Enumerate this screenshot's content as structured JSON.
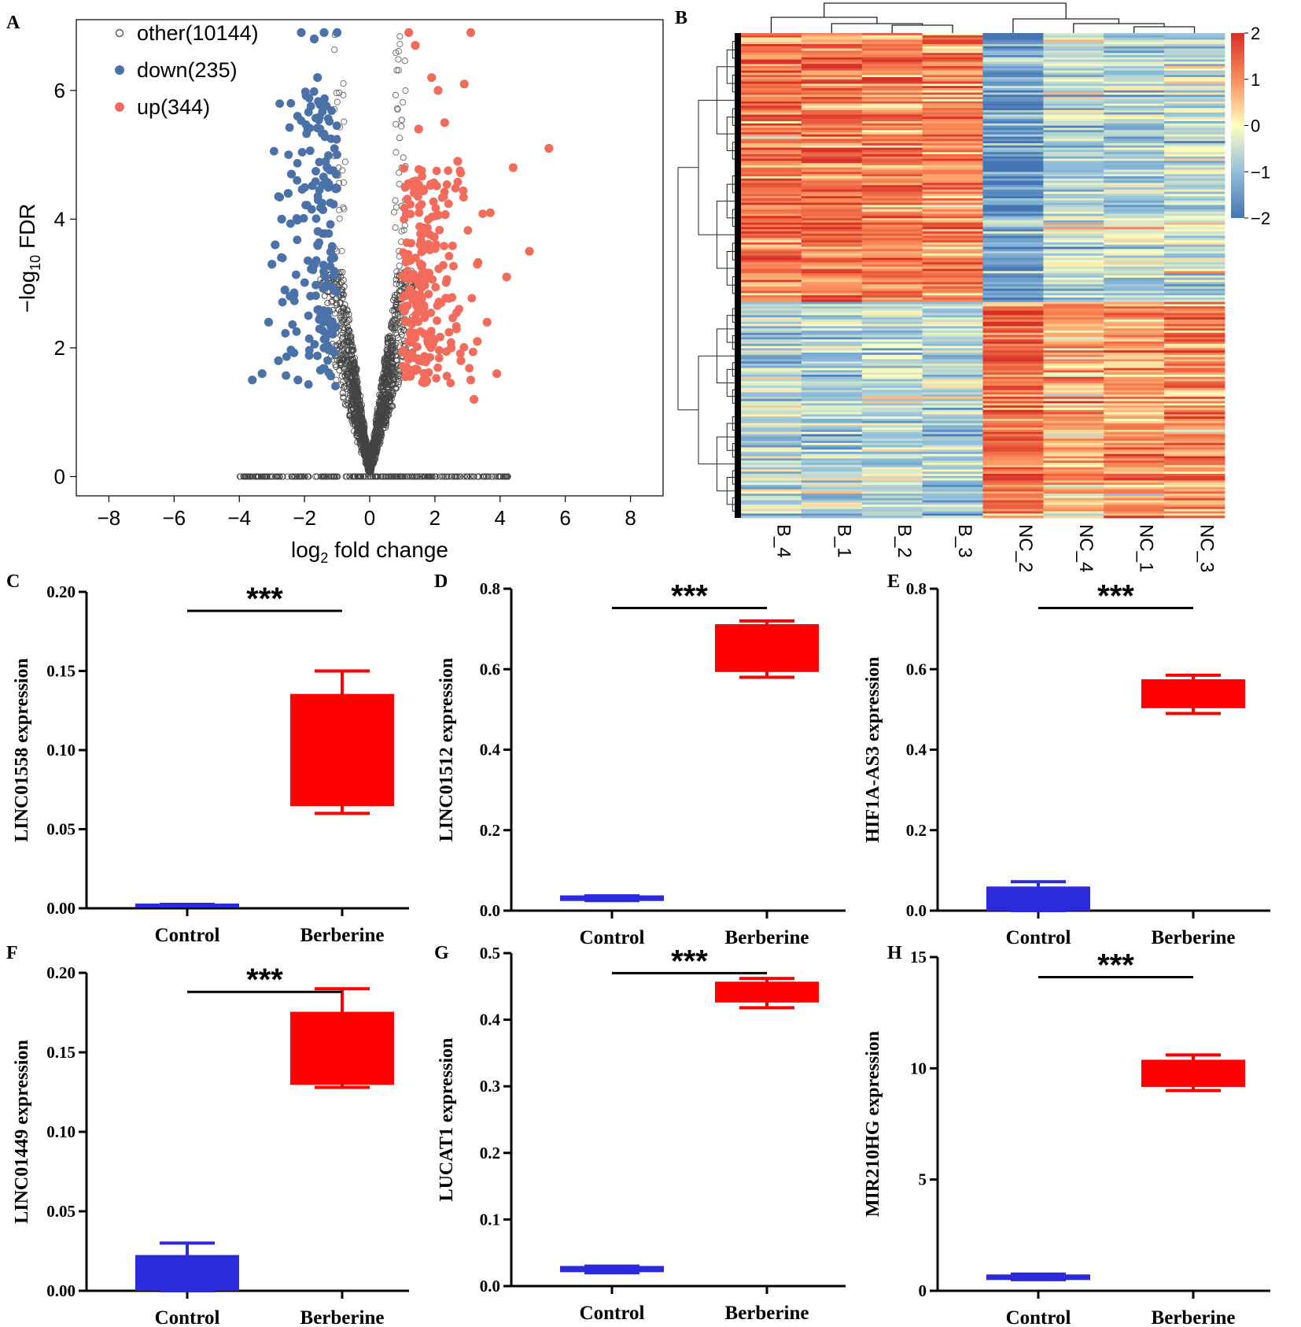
{
  "figure": {
    "panel_letters": [
      "A",
      "B",
      "C",
      "D",
      "E",
      "F",
      "G",
      "H"
    ]
  },
  "colors": {
    "up": "#f26b5b",
    "down": "#4a72a8",
    "other": "#555555",
    "box_berberine": "#ff0000",
    "box_control": "#2b2bdc",
    "heat_low": "#4575b4",
    "heat_mid": "#ffffbf",
    "heat_high": "#d73027"
  },
  "chart_data": [
    {
      "panel": "A",
      "type": "scatter",
      "title": "",
      "xlabel": "log2 fold change",
      "xlabel_main": "log",
      "xlabel_sub": "2",
      "xlabel_rest": " fold change",
      "ylabel": "-log10 FDR",
      "ylabel_main": "−log",
      "ylabel_sub": "10",
      "ylabel_rest": " FDR",
      "xlim": [
        -9,
        9
      ],
      "ylim": [
        -0.3,
        7.1
      ],
      "xticks": [
        -8,
        -6,
        -4,
        -2,
        0,
        2,
        4,
        6,
        8
      ],
      "xtick_labels": [
        "−8",
        "−6",
        "−4",
        "−2",
        "0",
        "2",
        "4",
        "6",
        "8"
      ],
      "yticks": [
        0,
        2,
        4,
        6
      ],
      "ytick_labels": [
        "0",
        "2",
        "4",
        "6"
      ],
      "legend": {
        "placement": "top-left",
        "entries": [
          {
            "key": "other",
            "label": "other(10144)",
            "count": 10144
          },
          {
            "key": "down",
            "label": "down(235)",
            "count": 235
          },
          {
            "key": "up",
            "label": "up(344)",
            "count": 344
          }
        ]
      },
      "series": [
        {
          "name": "up",
          "points": [
            [
              5.5,
              5.1
            ],
            [
              4.4,
              4.8
            ],
            [
              3.7,
              4.1
            ],
            [
              4.9,
              3.5
            ],
            [
              4.2,
              3.1
            ],
            [
              3.1,
              6.9
            ],
            [
              2.9,
              6.1
            ],
            [
              2.7,
              4.9
            ],
            [
              3.3,
              3.3
            ],
            [
              3.6,
              2.4
            ],
            [
              2.3,
              5.5
            ],
            [
              2.1,
              6.0
            ],
            [
              1.9,
              6.2
            ],
            [
              1.4,
              6.7
            ],
            [
              1.2,
              6.9
            ],
            [
              1.5,
              5.4
            ],
            [
              2.5,
              2.0
            ],
            [
              3.1,
              1.5
            ],
            [
              2.8,
              1.8
            ],
            [
              3.3,
              2.1
            ],
            [
              3.2,
              1.2
            ],
            [
              3.9,
              1.6
            ]
          ]
        },
        {
          "name": "down",
          "points": [
            [
              -2.1,
              6.9
            ],
            [
              -1.7,
              6.8
            ],
            [
              -1.4,
              6.9
            ],
            [
              -1.0,
              6.9
            ],
            [
              -1.6,
              6.2
            ],
            [
              -1.9,
              5.4
            ],
            [
              -2.4,
              4.7
            ],
            [
              -2.5,
              4.4
            ],
            [
              -2.7,
              4.0
            ],
            [
              -2.9,
              3.6
            ],
            [
              -3.0,
              3.3
            ],
            [
              -2.6,
              2.9
            ],
            [
              -3.1,
              2.4
            ],
            [
              -3.3,
              1.6
            ],
            [
              -3.6,
              1.5
            ],
            [
              -2.8,
              1.8
            ],
            [
              -2.2,
              1.5
            ],
            [
              -1.4,
              2.0
            ],
            [
              -1.1,
              3.4
            ],
            [
              -1.3,
              4.8
            ]
          ]
        }
      ],
      "other_summary": "10144 non-significant points clustered near x = 0 and along y = 0 between x = -4 and 4.3"
    },
    {
      "panel": "B",
      "type": "heatmap",
      "columns": [
        "B_4",
        "B_1",
        "B_2",
        "B_3",
        "NC_2",
        "NC_4",
        "NC_1",
        "NC_3"
      ],
      "color_scale": {
        "min": -2,
        "max": 2,
        "ticks": [
          2,
          1,
          0,
          -1,
          -2
        ],
        "tick_labels": [
          "2",
          "1",
          "0",
          "−1",
          "−2"
        ]
      },
      "row_blocks": [
        {
          "rows": "top ~55% of genes",
          "values": [
            1.2,
            1.3,
            1.2,
            1.1,
            -1.5,
            -0.6,
            -0.6,
            -0.5
          ]
        },
        {
          "rows": "bottom ~45% of genes",
          "values": [
            -0.6,
            -0.7,
            -0.6,
            -0.7,
            1.4,
            0.7,
            0.9,
            1.0
          ]
        }
      ]
    },
    {
      "panel": "C",
      "type": "box",
      "ylabel": "LINC01558 expression",
      "ylim": [
        0,
        0.2
      ],
      "yticks": [
        "0.00",
        "0.05",
        "0.10",
        "0.15",
        "0.20"
      ],
      "ytick_values": [
        0,
        0.05,
        0.1,
        0.15,
        0.2
      ],
      "categories": [
        "Control",
        "Berberine"
      ],
      "significance": "***",
      "boxes": [
        {
          "group": "Control",
          "min": 0.0015,
          "q1": 0.0015,
          "median": 0.002,
          "q3": 0.0025,
          "max": 0.0025
        },
        {
          "group": "Berberine",
          "min": 0.06,
          "q1": 0.065,
          "median": 0.095,
          "q3": 0.135,
          "max": 0.15
        }
      ]
    },
    {
      "panel": "D",
      "type": "box",
      "ylabel": "LINC01512 expression",
      "ylim": [
        0,
        0.8
      ],
      "yticks": [
        "0.0",
        "0.2",
        "0.4",
        "0.6",
        "0.8"
      ],
      "ytick_values": [
        0,
        0.2,
        0.4,
        0.6,
        0.8
      ],
      "categories": [
        "Control",
        "Berberine"
      ],
      "significance": "***",
      "boxes": [
        {
          "group": "Control",
          "min": 0.025,
          "q1": 0.026,
          "median": 0.03,
          "q3": 0.036,
          "max": 0.037
        },
        {
          "group": "Berberine",
          "min": 0.58,
          "q1": 0.595,
          "median": 0.65,
          "q3": 0.71,
          "max": 0.72
        }
      ]
    },
    {
      "panel": "E",
      "type": "box",
      "ylabel": "HIF1A-AS3 expression",
      "ylim": [
        0,
        0.8
      ],
      "yticks": [
        "0.0",
        "0.2",
        "0.4",
        "0.6",
        "0.8"
      ],
      "ytick_values": [
        0,
        0.2,
        0.4,
        0.6,
        0.8
      ],
      "categories": [
        "Control",
        "Berberine"
      ],
      "significance": "***",
      "boxes": [
        {
          "group": "Control",
          "min": 0.0,
          "q1": 0.001,
          "median": 0.04,
          "q3": 0.058,
          "max": 0.072
        },
        {
          "group": "Berberine",
          "min": 0.49,
          "q1": 0.505,
          "median": 0.535,
          "q3": 0.573,
          "max": 0.585
        }
      ]
    },
    {
      "panel": "F",
      "type": "box",
      "ylabel": "LINC01449 expression",
      "ylim": [
        0,
        0.2
      ],
      "yticks": [
        "0.00",
        "0.05",
        "0.10",
        "0.15",
        "0.20"
      ],
      "ytick_values": [
        0,
        0.05,
        0.1,
        0.15,
        0.2
      ],
      "categories": [
        "Control",
        "Berberine"
      ],
      "significance": "***",
      "boxes": [
        {
          "group": "Control",
          "min": 0.0,
          "q1": 0.0005,
          "median": 0.012,
          "q3": 0.022,
          "max": 0.03
        },
        {
          "group": "Berberine",
          "min": 0.128,
          "q1": 0.13,
          "median": 0.155,
          "q3": 0.175,
          "max": 0.19
        }
      ]
    },
    {
      "panel": "G",
      "type": "box",
      "ylabel": "LUCAT1 expression",
      "ylim": [
        0,
        0.5
      ],
      "yticks": [
        "0.0",
        "0.1",
        "0.2",
        "0.3",
        "0.4",
        "0.5"
      ],
      "ytick_values": [
        0,
        0.1,
        0.2,
        0.3,
        0.4,
        0.5
      ],
      "categories": [
        "Control",
        "Berberine"
      ],
      "significance": "***",
      "boxes": [
        {
          "group": "Control",
          "min": 0.02,
          "q1": 0.022,
          "median": 0.026,
          "q3": 0.029,
          "max": 0.03
        },
        {
          "group": "Berberine",
          "min": 0.418,
          "q1": 0.427,
          "median": 0.44,
          "q3": 0.456,
          "max": 0.462
        }
      ]
    },
    {
      "panel": "H",
      "type": "box",
      "ylabel": "MIR210HG expression",
      "ylim": [
        0,
        15
      ],
      "yticks": [
        "0",
        "5",
        "10",
        "15"
      ],
      "ytick_values": [
        0,
        5,
        10,
        15
      ],
      "categories": [
        "Control",
        "Berberine"
      ],
      "significance": "***",
      "boxes": [
        {
          "group": "Control",
          "min": 0.5,
          "q1": 0.52,
          "median": 0.6,
          "q3": 0.7,
          "max": 0.75
        },
        {
          "group": "Berberine",
          "min": 9.0,
          "q1": 9.2,
          "median": 9.8,
          "q3": 10.35,
          "max": 10.6
        }
      ]
    }
  ]
}
